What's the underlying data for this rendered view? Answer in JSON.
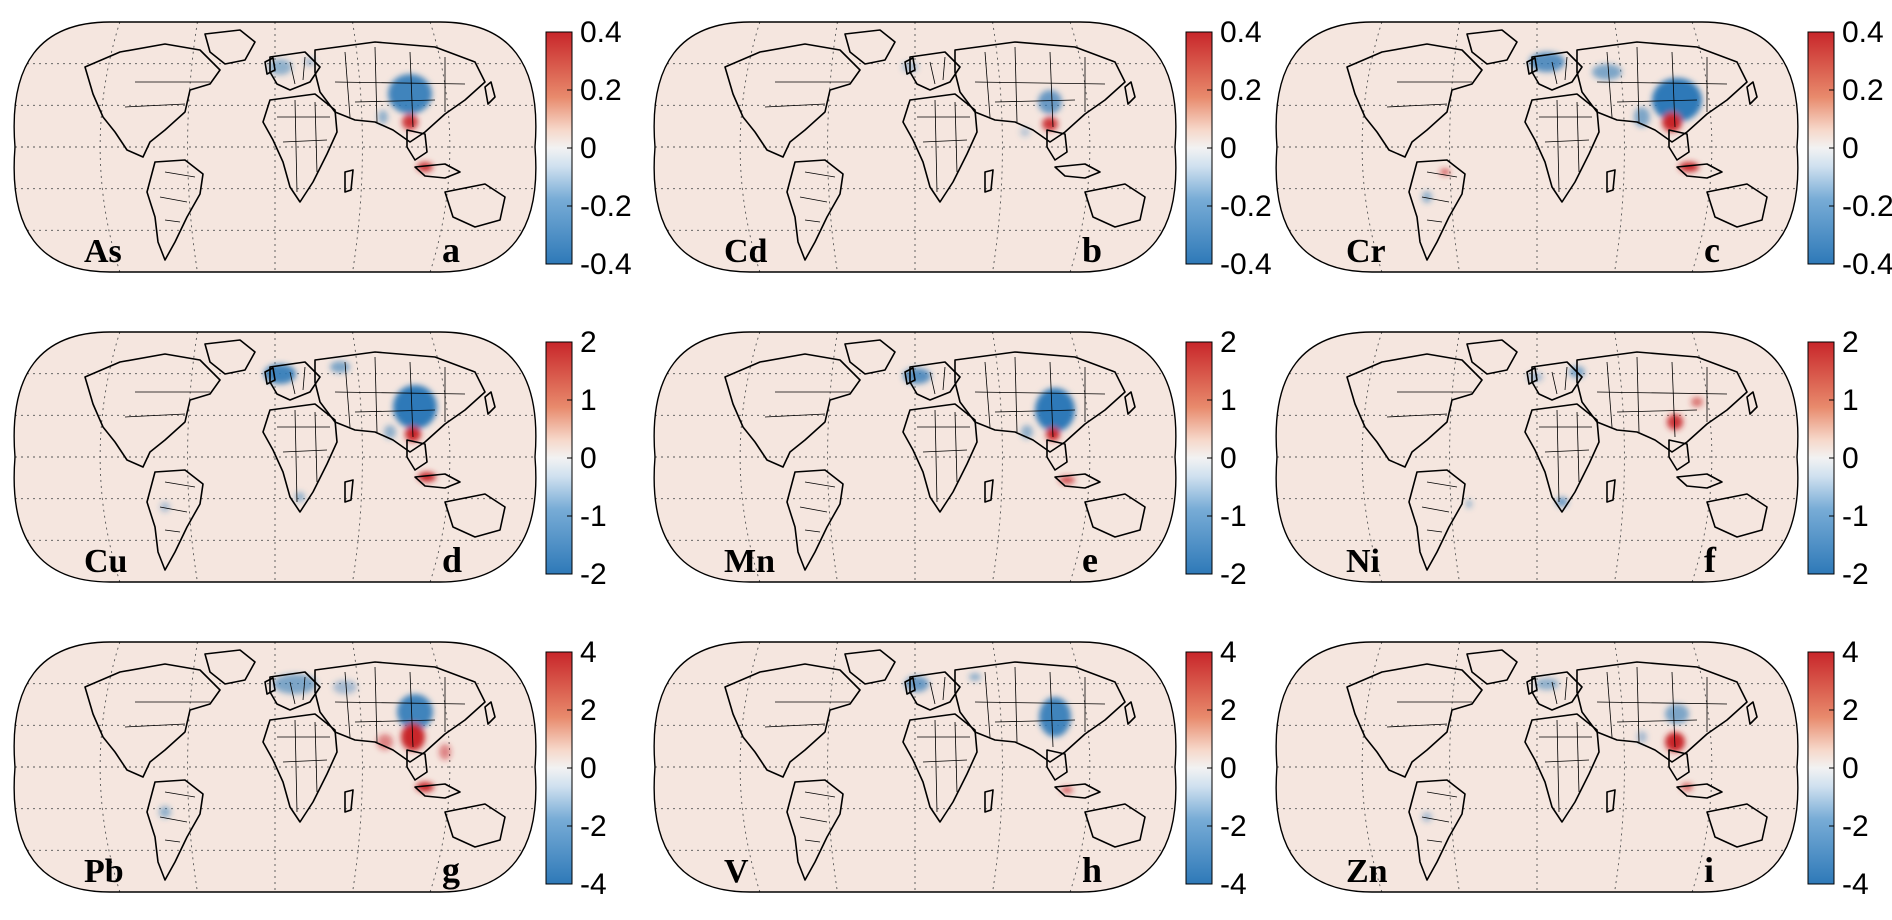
{
  "figure": {
    "panels": [
      {
        "element": "As",
        "letter": "a",
        "ticks": [
          "0.4",
          "0.2",
          "0",
          "-0.2",
          "-0.4"
        ],
        "range": [
          -0.4,
          0.4
        ]
      },
      {
        "element": "Cd",
        "letter": "b",
        "ticks": [
          "0.4",
          "0.2",
          "0",
          "-0.2",
          "-0.4"
        ],
        "range": [
          -0.4,
          0.4
        ]
      },
      {
        "element": "Cr",
        "letter": "c",
        "ticks": [
          "0.4",
          "0.2",
          "0",
          "-0.2",
          "-0.4"
        ],
        "range": [
          -0.4,
          0.4
        ]
      },
      {
        "element": "Cu",
        "letter": "d",
        "ticks": [
          "2",
          "1",
          "0",
          "-1",
          "-2"
        ],
        "range": [
          -2,
          2
        ]
      },
      {
        "element": "Mn",
        "letter": "e",
        "ticks": [
          "2",
          "1",
          "0",
          "-1",
          "-2"
        ],
        "range": [
          -2,
          2
        ]
      },
      {
        "element": "Ni",
        "letter": "f",
        "ticks": [
          "2",
          "1",
          "0",
          "-1",
          "-2"
        ],
        "range": [
          -2,
          2
        ]
      },
      {
        "element": "Pb",
        "letter": "g",
        "ticks": [
          "4",
          "2",
          "0",
          "-2",
          "-4"
        ],
        "range": [
          -4,
          4
        ]
      },
      {
        "element": "V",
        "letter": "h",
        "ticks": [
          "4",
          "2",
          "0",
          "-2",
          "-4"
        ],
        "range": [
          -4,
          4
        ]
      },
      {
        "element": "Zn",
        "letter": "i",
        "ticks": [
          "4",
          "2",
          "0",
          "-2",
          "-4"
        ],
        "range": [
          -4,
          4
        ]
      }
    ],
    "colors": {
      "ocean_land_base": "#f5e6df",
      "positive": "#c8262a",
      "negative": "#2e79b8",
      "neutral": "#f2f2f2",
      "outline": "#000000"
    }
  }
}
